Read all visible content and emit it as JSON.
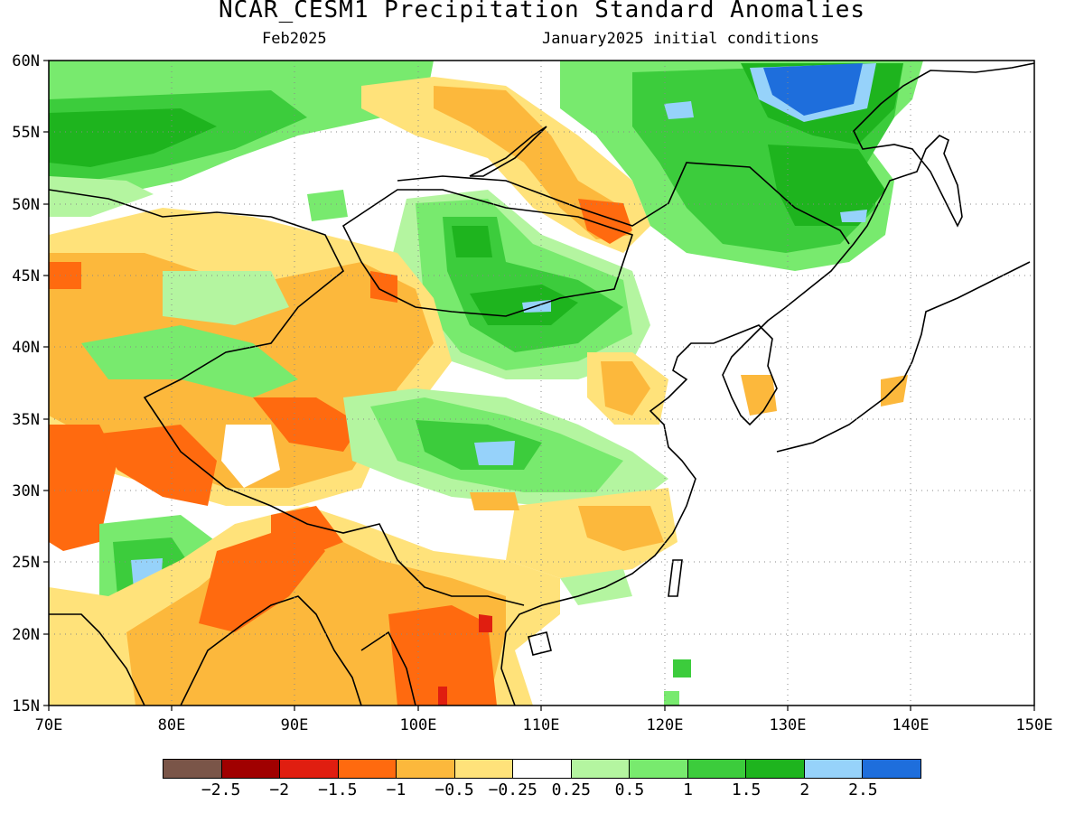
{
  "header": {
    "title": "NCAR_CESM1 Precipitation Standard Anomalies",
    "target_month": "Feb2025",
    "init_conditions": "January2025 initial conditions"
  },
  "map": {
    "lon_range": [
      70,
      150
    ],
    "lat_range": [
      15,
      60
    ],
    "x_ticks": [
      "70E",
      "80E",
      "90E",
      "100E",
      "110E",
      "120E",
      "130E",
      "140E",
      "150E"
    ],
    "y_ticks": [
      "60N",
      "55N",
      "50N",
      "45N",
      "40N",
      "35N",
      "30N",
      "25N",
      "20N",
      "15N"
    ]
  },
  "legend": {
    "colors": [
      "#7a5548",
      "#a00000",
      "#e01e10",
      "#ff6a0f",
      "#fcb83c",
      "#ffe27a",
      "#ffffff",
      "#b4f5a0",
      "#78ea6e",
      "#3ccc3c",
      "#1eb41e",
      "#96d2fa",
      "#1e6edc"
    ],
    "labels": [
      "−2.5",
      "−2",
      "−1.5",
      "−1",
      "−0.5",
      "−0.25",
      "0.25",
      "0.5",
      "1",
      "1.5",
      "2",
      "2.5"
    ]
  }
}
